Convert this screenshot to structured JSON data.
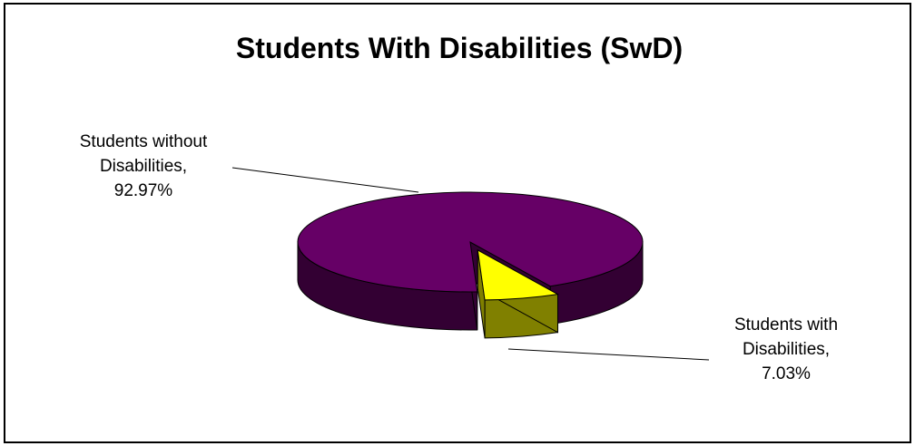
{
  "chart_data": {
    "type": "pie",
    "style": "3d-exploded",
    "title": "Students With Disabilities (SwD)",
    "series": [
      {
        "values": [
          92.97,
          7.03
        ]
      }
    ],
    "categories": [
      "Students without Disabilities",
      "Students with Disabilities"
    ],
    "slices": [
      {
        "name": "Students without Disabilities",
        "value": 92.97,
        "label": "Students without\nDisabilities,\n92.97%",
        "color": "#660066",
        "side_color": "#330033"
      },
      {
        "name": "Students with Disabilities",
        "value": 7.03,
        "label": "Students with\nDisabilities,\n7.03%",
        "color": "#ffff00",
        "side_color": "#808000"
      }
    ],
    "legend": "none"
  }
}
